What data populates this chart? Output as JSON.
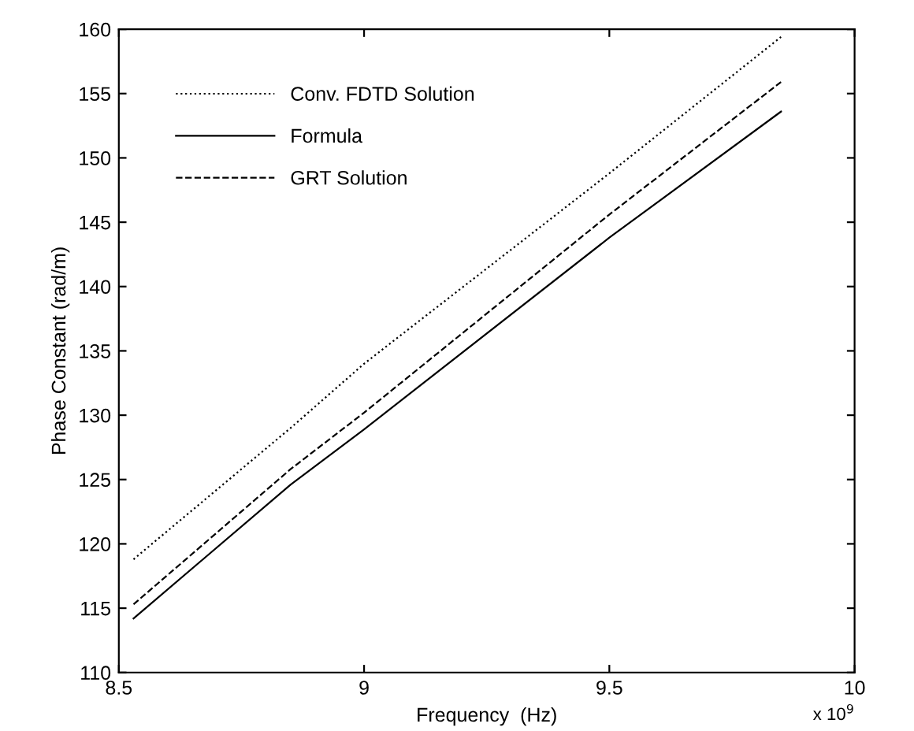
{
  "chart_data": {
    "type": "line",
    "xlabel": "Frequency  (Hz)",
    "ylabel": "Phase Constant (rad/m)",
    "series": [
      {
        "name": "Conv. FDTD Solution",
        "color": "#000000",
        "line_style": "dotted",
        "x": [
          8.53,
          8.85,
          9.0,
          9.5,
          9.85
        ],
        "values": [
          118.8,
          129.0,
          134.0,
          148.8,
          159.4
        ]
      },
      {
        "name": "Formula",
        "color": "#000000",
        "line_style": "solid",
        "x": [
          8.53,
          8.85,
          9.0,
          9.5,
          9.85
        ],
        "values": [
          114.2,
          124.6,
          128.9,
          143.8,
          153.6
        ]
      },
      {
        "name": "GRT Solution",
        "color": "#000000",
        "line_style": "dashed",
        "x": [
          8.53,
          8.85,
          9.0,
          9.5,
          9.85
        ],
        "values": [
          115.3,
          125.8,
          130.2,
          145.6,
          155.9
        ]
      }
    ],
    "xlim": [
      8.5,
      10
    ],
    "xticks": [
      8.5,
      9,
      9.5,
      10
    ],
    "ylim": [
      110,
      160
    ],
    "yticks": [
      110,
      115,
      120,
      125,
      130,
      135,
      140,
      145,
      150,
      155,
      160
    ],
    "grid": false,
    "legend": "top left",
    "marker": "none",
    "annotations": [
      "x 10$^{9}$"
    ]
  }
}
